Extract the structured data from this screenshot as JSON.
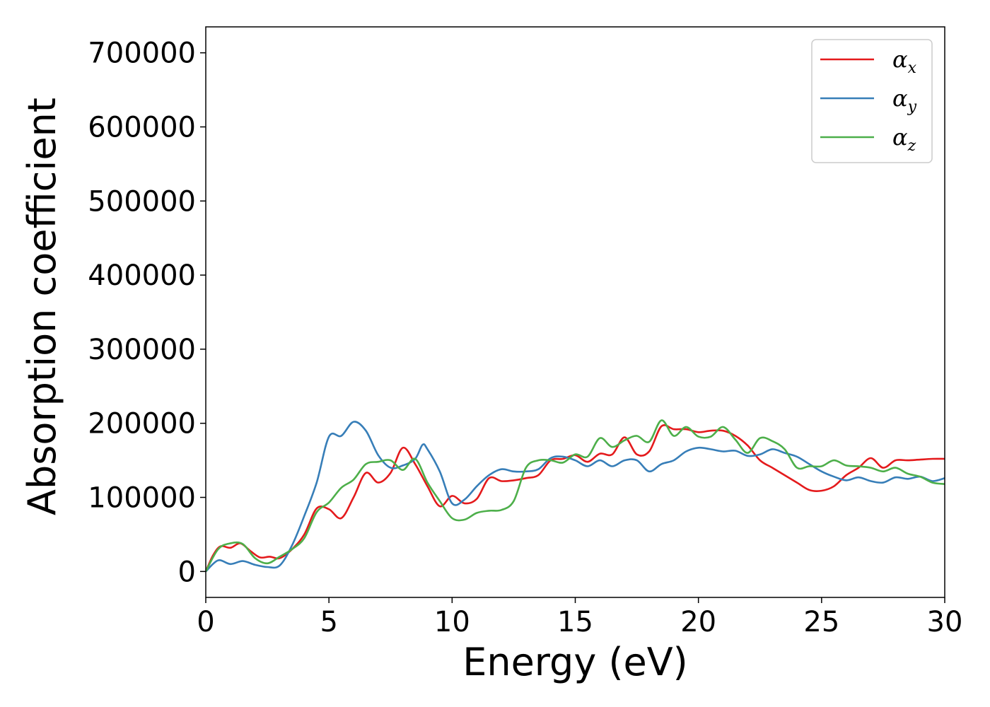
{
  "chart_data": {
    "type": "line",
    "title": "",
    "xlabel": "Energy (eV)",
    "ylabel": "Absorption coefficient",
    "xlim": [
      0,
      30
    ],
    "ylim": [
      -35000,
      735000
    ],
    "xticks": [
      0,
      5,
      10,
      15,
      20,
      25,
      30
    ],
    "xtick_labels": [
      "0",
      "5",
      "10",
      "15",
      "20",
      "25",
      "30"
    ],
    "yticks": [
      0,
      100000,
      200000,
      300000,
      400000,
      500000,
      600000,
      700000
    ],
    "ytick_labels": [
      "0",
      "100000",
      "200000",
      "300000",
      "400000",
      "500000",
      "600000",
      "700000"
    ],
    "grid": false,
    "legend_position": "top-right",
    "series": [
      {
        "name": "α",
        "subscript": "x",
        "color": "#e41a1c",
        "points": [
          [
            0,
            0
          ],
          [
            0.3,
            22000
          ],
          [
            0.6,
            34000
          ],
          [
            1.0,
            32000
          ],
          [
            1.4,
            38000
          ],
          [
            1.8,
            28000
          ],
          [
            2.2,
            19000
          ],
          [
            2.6,
            20000
          ],
          [
            3.0,
            18000
          ],
          [
            3.5,
            30000
          ],
          [
            4.0,
            50000
          ],
          [
            4.5,
            85000
          ],
          [
            5.0,
            84000
          ],
          [
            5.5,
            72000
          ],
          [
            6.0,
            100000
          ],
          [
            6.5,
            133000
          ],
          [
            7.0,
            120000
          ],
          [
            7.5,
            133000
          ],
          [
            8.0,
            167000
          ],
          [
            8.5,
            145000
          ],
          [
            9.0,
            115000
          ],
          [
            9.5,
            88000
          ],
          [
            10.0,
            102000
          ],
          [
            10.5,
            92000
          ],
          [
            11.0,
            98000
          ],
          [
            11.5,
            126000
          ],
          [
            12.0,
            122000
          ],
          [
            12.5,
            123000
          ],
          [
            13.0,
            126000
          ],
          [
            13.5,
            130000
          ],
          [
            14.0,
            150000
          ],
          [
            14.5,
            152000
          ],
          [
            15.0,
            157000
          ],
          [
            15.5,
            148000
          ],
          [
            16.0,
            159000
          ],
          [
            16.5,
            158000
          ],
          [
            17.0,
            181000
          ],
          [
            17.5,
            158000
          ],
          [
            18.0,
            162000
          ],
          [
            18.5,
            196000
          ],
          [
            19.0,
            192000
          ],
          [
            19.5,
            192000
          ],
          [
            20.0,
            188000
          ],
          [
            20.5,
            190000
          ],
          [
            21.0,
            190000
          ],
          [
            21.5,
            183000
          ],
          [
            22.0,
            170000
          ],
          [
            22.5,
            150000
          ],
          [
            23.0,
            140000
          ],
          [
            23.5,
            130000
          ],
          [
            24.0,
            120000
          ],
          [
            24.5,
            110000
          ],
          [
            25.0,
            109000
          ],
          [
            25.5,
            115000
          ],
          [
            26.0,
            130000
          ],
          [
            26.5,
            140000
          ],
          [
            27.0,
            153000
          ],
          [
            27.5,
            140000
          ],
          [
            28.0,
            150000
          ],
          [
            28.5,
            150000
          ],
          [
            29.0,
            151000
          ],
          [
            29.5,
            152000
          ],
          [
            30.0,
            152000
          ]
        ]
      },
      {
        "name": "α",
        "subscript": "y",
        "color": "#377eb8",
        "points": [
          [
            0,
            0
          ],
          [
            0.5,
            15000
          ],
          [
            1.0,
            10000
          ],
          [
            1.5,
            14000
          ],
          [
            2.0,
            9000
          ],
          [
            2.5,
            6000
          ],
          [
            3.0,
            8000
          ],
          [
            3.5,
            35000
          ],
          [
            4.0,
            75000
          ],
          [
            4.5,
            120000
          ],
          [
            5.0,
            182000
          ],
          [
            5.5,
            183000
          ],
          [
            6.0,
            202000
          ],
          [
            6.5,
            190000
          ],
          [
            7.0,
            157000
          ],
          [
            7.5,
            140000
          ],
          [
            8.0,
            143000
          ],
          [
            8.5,
            152000
          ],
          [
            8.8,
            171000
          ],
          [
            9.0,
            165000
          ],
          [
            9.5,
            135000
          ],
          [
            10.0,
            92000
          ],
          [
            10.5,
            97000
          ],
          [
            11.0,
            115000
          ],
          [
            11.5,
            130000
          ],
          [
            12.0,
            138000
          ],
          [
            12.5,
            135000
          ],
          [
            13.0,
            135000
          ],
          [
            13.5,
            138000
          ],
          [
            14.0,
            153000
          ],
          [
            14.5,
            155000
          ],
          [
            15.0,
            150000
          ],
          [
            15.5,
            142000
          ],
          [
            16.0,
            150000
          ],
          [
            16.5,
            142000
          ],
          [
            17.0,
            150000
          ],
          [
            17.5,
            150000
          ],
          [
            18.0,
            135000
          ],
          [
            18.5,
            145000
          ],
          [
            19.0,
            150000
          ],
          [
            19.5,
            162000
          ],
          [
            20.0,
            167000
          ],
          [
            20.5,
            165000
          ],
          [
            21.0,
            162000
          ],
          [
            21.5,
            163000
          ],
          [
            22.0,
            156000
          ],
          [
            22.5,
            158000
          ],
          [
            23.0,
            165000
          ],
          [
            23.5,
            160000
          ],
          [
            24.0,
            155000
          ],
          [
            24.5,
            145000
          ],
          [
            25.0,
            135000
          ],
          [
            25.5,
            128000
          ],
          [
            26.0,
            123000
          ],
          [
            26.5,
            127000
          ],
          [
            27.0,
            122000
          ],
          [
            27.5,
            120000
          ],
          [
            28.0,
            127000
          ],
          [
            28.5,
            125000
          ],
          [
            29.0,
            128000
          ],
          [
            29.5,
            122000
          ],
          [
            30.0,
            126000
          ]
        ]
      },
      {
        "name": "α",
        "subscript": "z",
        "color": "#4daf4a",
        "points": [
          [
            0,
            0
          ],
          [
            0.5,
            30000
          ],
          [
            1.0,
            38000
          ],
          [
            1.5,
            37000
          ],
          [
            2.0,
            18000
          ],
          [
            2.5,
            11000
          ],
          [
            3.0,
            20000
          ],
          [
            3.5,
            30000
          ],
          [
            4.0,
            45000
          ],
          [
            4.5,
            80000
          ],
          [
            5.0,
            93000
          ],
          [
            5.5,
            113000
          ],
          [
            6.0,
            124000
          ],
          [
            6.5,
            145000
          ],
          [
            7.0,
            148000
          ],
          [
            7.5,
            150000
          ],
          [
            8.0,
            137000
          ],
          [
            8.5,
            152000
          ],
          [
            9.0,
            120000
          ],
          [
            9.5,
            95000
          ],
          [
            10.0,
            72000
          ],
          [
            10.5,
            70000
          ],
          [
            11.0,
            79000
          ],
          [
            11.5,
            82000
          ],
          [
            12.0,
            83000
          ],
          [
            12.5,
            95000
          ],
          [
            13.0,
            140000
          ],
          [
            13.5,
            150000
          ],
          [
            14.0,
            150000
          ],
          [
            14.5,
            147000
          ],
          [
            15.0,
            158000
          ],
          [
            15.5,
            155000
          ],
          [
            16.0,
            180000
          ],
          [
            16.5,
            168000
          ],
          [
            17.0,
            177000
          ],
          [
            17.5,
            183000
          ],
          [
            18.0,
            175000
          ],
          [
            18.5,
            204000
          ],
          [
            19.0,
            183000
          ],
          [
            19.5,
            195000
          ],
          [
            20.0,
            182000
          ],
          [
            20.5,
            182000
          ],
          [
            21.0,
            195000
          ],
          [
            21.5,
            178000
          ],
          [
            22.0,
            160000
          ],
          [
            22.5,
            180000
          ],
          [
            23.0,
            176000
          ],
          [
            23.5,
            165000
          ],
          [
            24.0,
            140000
          ],
          [
            24.5,
            142000
          ],
          [
            25.0,
            142000
          ],
          [
            25.5,
            150000
          ],
          [
            26.0,
            143000
          ],
          [
            26.5,
            142000
          ],
          [
            27.0,
            140000
          ],
          [
            27.5,
            135000
          ],
          [
            28.0,
            140000
          ],
          [
            28.5,
            132000
          ],
          [
            29.0,
            128000
          ],
          [
            29.5,
            120000
          ],
          [
            30.0,
            118000
          ]
        ]
      }
    ]
  }
}
